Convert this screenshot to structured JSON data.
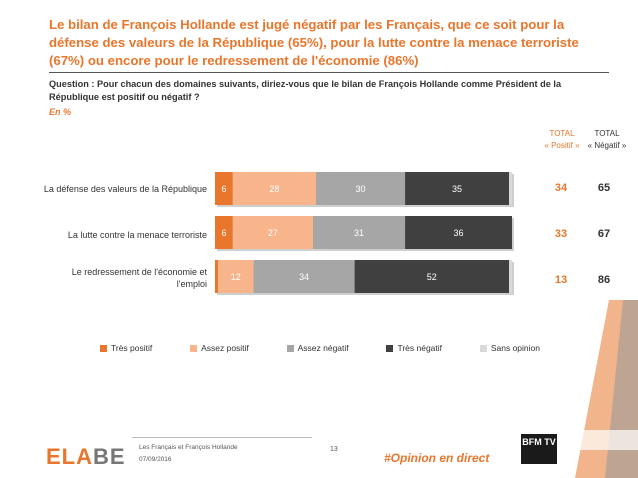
{
  "header": {
    "title": "Le bilan de François Hollande est jugé négatif par les Français, que ce soit pour la défense des valeurs de la République (65%), pour la lutte contre la menace terroriste (67%) ou encore pour le redressement de l'économie (86%)",
    "question": "Question : Pour chacun des domaines suivants, diriez-vous que le bilan de François Hollande comme Président de la République est positif ou négatif ?",
    "unit": "En %"
  },
  "columns": {
    "positive_label_1": "TOTAL",
    "positive_label_2": "« Positif »",
    "negative_label_1": "TOTAL",
    "negative_label_2": "« Négatif »"
  },
  "rows": [
    {
      "label": "La défense des valeurs de la République",
      "total_pos": "34",
      "total_neg": "65"
    },
    {
      "label": "La lutte contre la menace terroriste",
      "total_pos": "33",
      "total_neg": "67"
    },
    {
      "label": "Le redressement de l'économie et l'emploi",
      "total_pos": "13",
      "total_neg": "86"
    }
  ],
  "chart_data": {
    "type": "bar",
    "orientation": "horizontal",
    "stacked": true,
    "categories": [
      "La défense des valeurs de la République",
      "La lutte contre la menace terroriste",
      "Le redressement de l'économie et l'emploi"
    ],
    "series": [
      {
        "name": "Très positif",
        "values": [
          6,
          6,
          1
        ],
        "color": "#E8762C"
      },
      {
        "name": "Assez positif",
        "values": [
          28,
          27,
          12
        ],
        "color": "#F8B48A"
      },
      {
        "name": "Assez négatif",
        "values": [
          30,
          31,
          34
        ],
        "color": "#A6A6A6"
      },
      {
        "name": "Très négatif",
        "values": [
          35,
          36,
          52
        ],
        "color": "#404040"
      },
      {
        "name": "Sans opinion",
        "values": [
          1,
          0,
          1
        ],
        "color": "#D9D9D9"
      }
    ],
    "xlim": [
      0,
      100
    ],
    "legend": "bottom"
  },
  "footer": {
    "logo_main": "ELA",
    "logo_accent": "BE",
    "survey": "Les Français et François Hollande",
    "date": "07/09/2016",
    "page": "13",
    "hashtag": "#Opinion en direct",
    "bfm": "BFM TV"
  }
}
